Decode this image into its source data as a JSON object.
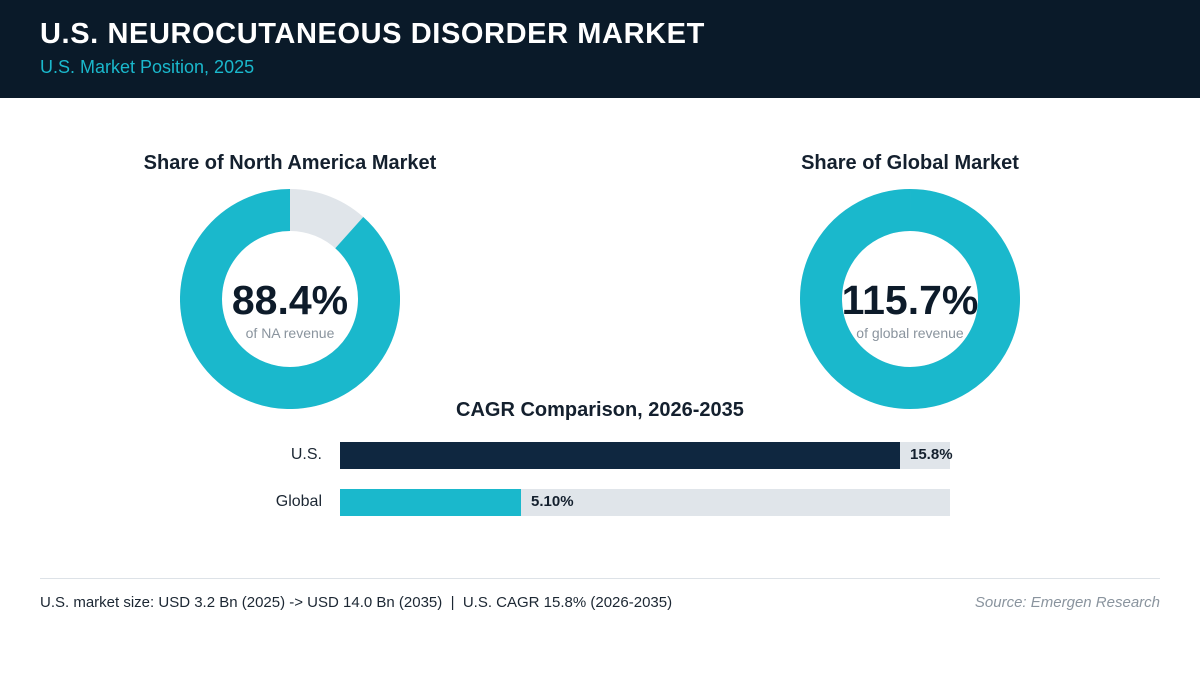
{
  "header": {
    "title": "U.S. NEUROCUTANEOUS DISORDER MARKET",
    "subtitle": "U.S. Market Position, 2025"
  },
  "colors": {
    "header_bg": "#0a1a29",
    "accent": "#1ab8cc",
    "navy": "#0f2740",
    "track": "#e0e5ea"
  },
  "chart_data": [
    {
      "type": "pie",
      "title": "Share of North America Market",
      "value": 88.4,
      "value_label": "88.4%",
      "caption": "of NA revenue",
      "color": "#1ab8cc"
    },
    {
      "type": "pie",
      "title": "Share of Global Market",
      "value": 115.7,
      "value_label": "115.7%",
      "caption": "of global revenue",
      "color": "#1ab8cc"
    },
    {
      "type": "bar",
      "title": "CAGR Comparison, 2026-2035",
      "orientation": "horizontal",
      "categories": [
        "U.S.",
        "Global"
      ],
      "values": [
        15.8,
        5.1
      ],
      "value_labels": [
        "15.8%",
        "5.10%"
      ],
      "colors": [
        "#0f2740",
        "#1ab8cc"
      ],
      "xlim": [
        0,
        17.2
      ]
    }
  ],
  "footer": {
    "note": "U.S. market size: USD 3.2 Bn (2025) -> USD 14.0 Bn (2035)  |  U.S. CAGR 15.8% (2026-2035)",
    "source": "Source: Emergen Research"
  }
}
